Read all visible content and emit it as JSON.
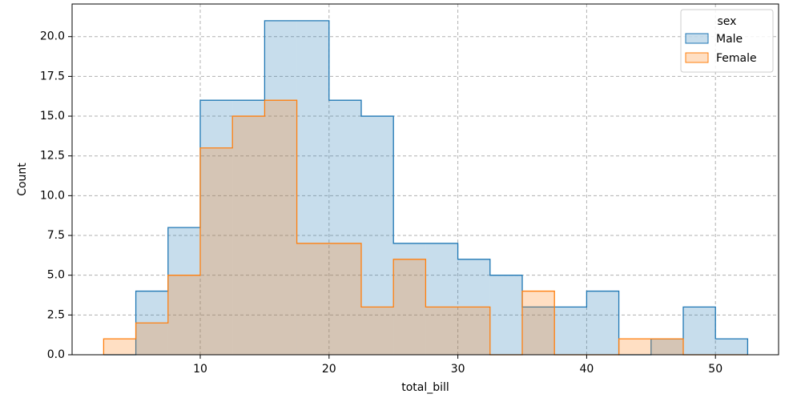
{
  "chart_data": {
    "type": "histogram",
    "xlabel": "total_bill",
    "ylabel": "Count",
    "bins": [
      2.5,
      5,
      7.5,
      10,
      12.5,
      15,
      17.5,
      20,
      22.5,
      25,
      27.5,
      30,
      32.5,
      35,
      37.5,
      40,
      42.5,
      45,
      47.5,
      50,
      52.5
    ],
    "series": [
      {
        "name": "Male",
        "color": "#1f77b4",
        "values": [
          0,
          4,
          8,
          16,
          16,
          21,
          21,
          16,
          15,
          7,
          7,
          6,
          5,
          3,
          3,
          4,
          0,
          1,
          3,
          1
        ]
      },
      {
        "name": "Female",
        "color": "#ff7f0e",
        "values": [
          1,
          2,
          5,
          13,
          15,
          16,
          7,
          7,
          3,
          6,
          3,
          3,
          0,
          4,
          0,
          0,
          1,
          1,
          0,
          0
        ]
      }
    ],
    "legend_title": "sex",
    "legend": "upper right",
    "grid": true,
    "xlim": [
      0.05,
      54.9
    ],
    "xticks": [
      10,
      20,
      30,
      40,
      50
    ],
    "ylim": [
      0,
      22.05
    ],
    "yticks": [
      {
        "value": 0,
        "label": "0.0"
      },
      {
        "value": 2.5,
        "label": "2.5"
      },
      {
        "value": 5,
        "label": "5.0"
      },
      {
        "value": 7.5,
        "label": "7.5"
      },
      {
        "value": 10,
        "label": "10.0"
      },
      {
        "value": 12.5,
        "label": "12.5"
      },
      {
        "value": 15,
        "label": "15.0"
      },
      {
        "value": 17.5,
        "label": "17.5"
      },
      {
        "value": 20,
        "label": "20.0"
      }
    ]
  }
}
